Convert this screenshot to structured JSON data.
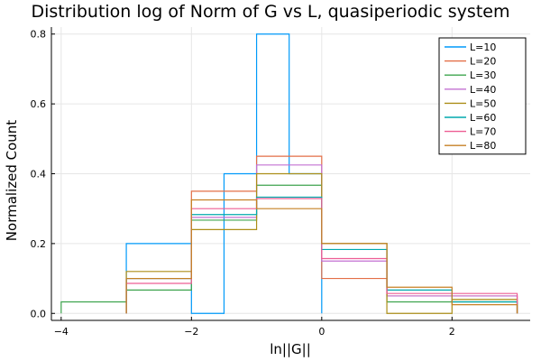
{
  "chart_data": {
    "type": "histogram-step",
    "title": "Distribution log of Norm of G vs L, quasiperiodic system",
    "xlabel": "ln||G||",
    "ylabel": "Normalized Count",
    "xlim": [
      -4.15,
      3.2
    ],
    "ylim": [
      -0.02,
      0.82
    ],
    "xticks": [
      -4,
      -2,
      0,
      2
    ],
    "xtick_labels": [
      "−4",
      "−2",
      "0",
      "2"
    ],
    "yticks": [
      0.0,
      0.2,
      0.4,
      0.6,
      0.8
    ],
    "ytick_labels": [
      "0.0",
      "0.2",
      "0.4",
      "0.6",
      "0.8"
    ],
    "grid": true,
    "legend_position": "top-right",
    "series": [
      {
        "name": "L=10",
        "color": "#009AFA",
        "edges": [
          -3,
          -2,
          -1.5,
          -1,
          -0.5,
          0
        ],
        "values": [
          0.2,
          0.0,
          0.4,
          0.8,
          0.4
        ]
      },
      {
        "name": "L=20",
        "color": "#E36F47",
        "edges": [
          -3,
          -2,
          -1,
          0,
          1,
          2,
          3
        ],
        "values": [
          0.1,
          0.35,
          0.45,
          0.1,
          0.05,
          0.05
        ]
      },
      {
        "name": "L=30",
        "color": "#3EA44E",
        "edges": [
          -4,
          -3,
          -2,
          -1,
          0,
          1,
          2,
          3
        ],
        "values": [
          0.033,
          0.067,
          0.267,
          0.367,
          0.2,
          0.033,
          0.033
        ]
      },
      {
        "name": "L=40",
        "color": "#C371D2",
        "edges": [
          -3,
          -2,
          -1,
          0,
          1,
          2,
          3
        ],
        "values": [
          0.1,
          0.275,
          0.425,
          0.15,
          0.05,
          0.05
        ]
      },
      {
        "name": "L=50",
        "color": "#AC8E18",
        "edges": [
          -3,
          -2,
          -1,
          0,
          1,
          2,
          3
        ],
        "values": [
          0.12,
          0.24,
          0.4,
          0.2,
          0.0,
          0.04
        ]
      },
      {
        "name": "L=60",
        "color": "#00A9AD",
        "edges": [
          -3,
          -2,
          -1,
          0,
          1,
          2,
          3
        ],
        "values": [
          0.1,
          0.283,
          0.333,
          0.183,
          0.067,
          0.033
        ]
      },
      {
        "name": "L=70",
        "color": "#ED5E93",
        "edges": [
          -3,
          -2,
          -1,
          0,
          1,
          2,
          3
        ],
        "values": [
          0.086,
          0.3,
          0.329,
          0.157,
          0.057,
          0.057
        ]
      },
      {
        "name": "L=80",
        "color": "#C68125",
        "edges": [
          -3,
          -2,
          -1,
          0,
          1,
          2,
          3
        ],
        "values": [
          0.1,
          0.325,
          0.3,
          0.2,
          0.075,
          0.025
        ]
      }
    ]
  }
}
